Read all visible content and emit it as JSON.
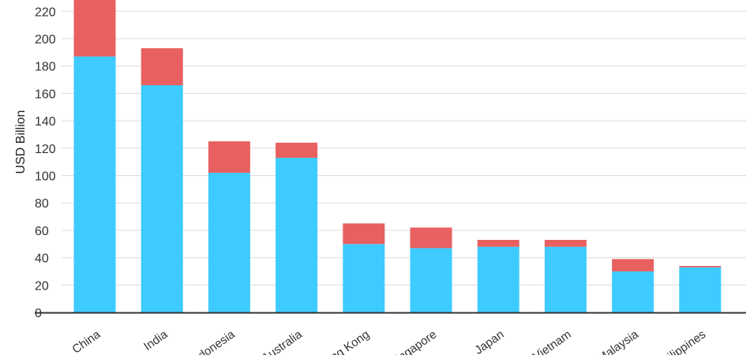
{
  "chart_data": {
    "type": "bar",
    "stacked": true,
    "title": "",
    "xlabel": "",
    "ylabel": "USD Billion",
    "ylim": [
      0,
      230
    ],
    "yticks": [
      0,
      20,
      40,
      60,
      80,
      100,
      120,
      140,
      160,
      180,
      200,
      220
    ],
    "grid": true,
    "legend": "none",
    "categories": [
      "China",
      "India",
      "Indonesia",
      "Australia",
      "Hong Kong",
      "Singapore",
      "Japan",
      "Vietnam",
      "Malaysia",
      "Philippines"
    ],
    "series": [
      {
        "color": "#3ecbff",
        "values": [
          187,
          166,
          102,
          113,
          50,
          47,
          48,
          48,
          30,
          33
        ]
      },
      {
        "color": "#e86060",
        "values": [
          42,
          27,
          23,
          11,
          15,
          15,
          5,
          5,
          9,
          1
        ]
      }
    ]
  }
}
